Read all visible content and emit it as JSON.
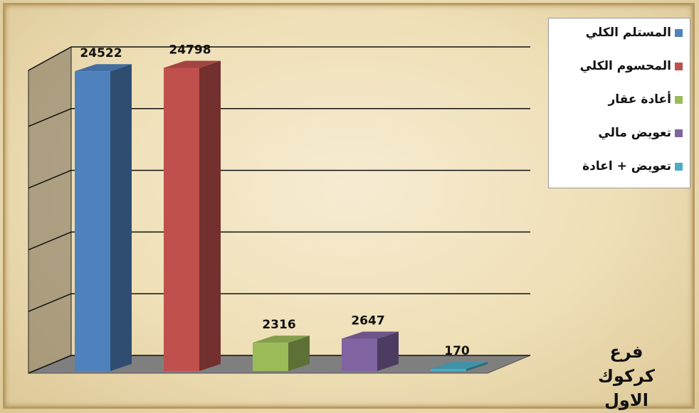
{
  "chart_data": {
    "type": "bar3d",
    "categories": [
      "فرع كركوك الاول"
    ],
    "series": [
      {
        "name": "المستلم الكلي",
        "color": "#4f81bd",
        "values": [
          24522
        ]
      },
      {
        "name": "المحسوم الكلي",
        "color": "#c0504d",
        "values": [
          24798
        ]
      },
      {
        "name": "أعادة عقار",
        "color": "#9bbb59",
        "values": [
          2316
        ]
      },
      {
        "name": "تعويض مالي",
        "color": "#8064a2",
        "values": [
          2647
        ]
      },
      {
        "name": "تعويض + اعادة",
        "color": "#4bacc6",
        "values": [
          170
        ]
      }
    ],
    "ylim": [
      0,
      25000
    ],
    "yticks": [
      0,
      5000,
      10000,
      15000,
      20000,
      25000
    ],
    "grid": true,
    "legend": "top-right"
  }
}
